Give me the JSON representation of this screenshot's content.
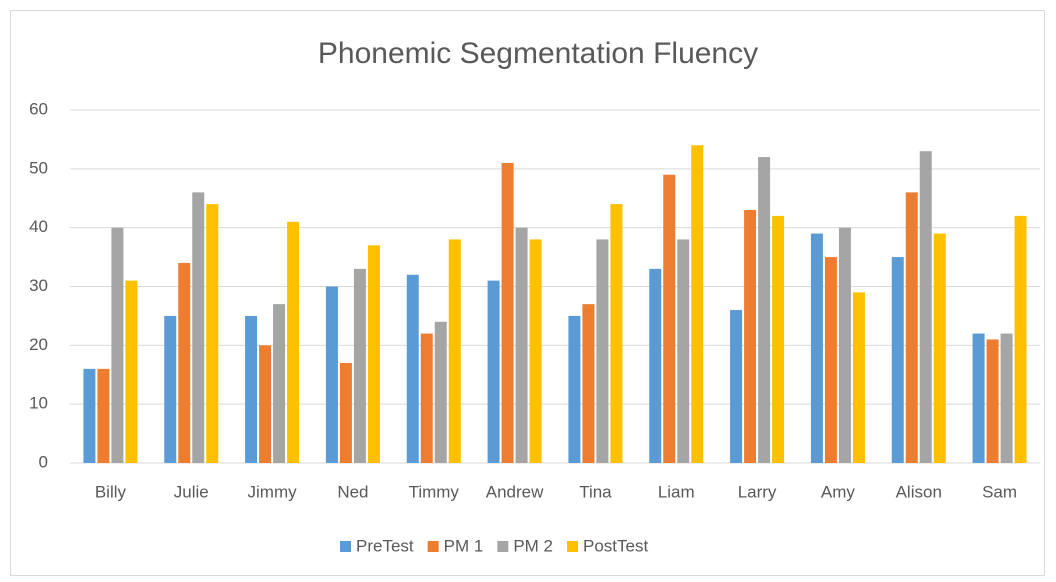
{
  "chart_data": {
    "type": "bar",
    "title": "Phonemic Segmentation Fluency",
    "categories": [
      "Billy",
      "Julie",
      "Jimmy",
      "Ned",
      "Timmy",
      "Andrew",
      "Tina",
      "Liam",
      "Larry",
      "Amy",
      "Alison",
      "Sam"
    ],
    "series": [
      {
        "name": "PreTest",
        "color": "#5b9bd5",
        "values": [
          16,
          25,
          25,
          30,
          32,
          31,
          25,
          33,
          26,
          39,
          35,
          22
        ]
      },
      {
        "name": "PM 1",
        "color": "#ed7d31",
        "values": [
          16,
          34,
          20,
          17,
          22,
          51,
          27,
          49,
          43,
          35,
          46,
          21
        ]
      },
      {
        "name": "PM 2",
        "color": "#a5a5a5",
        "values": [
          40,
          46,
          27,
          33,
          24,
          40,
          38,
          38,
          52,
          40,
          53,
          22
        ]
      },
      {
        "name": "PostTest",
        "color": "#ffc000",
        "values": [
          31,
          44,
          41,
          37,
          38,
          38,
          44,
          54,
          42,
          29,
          39,
          42
        ]
      }
    ],
    "ylim": [
      0,
      60
    ],
    "yticks": [
      0,
      10,
      20,
      30,
      40,
      50,
      60
    ],
    "grid": true,
    "legend": "bottom"
  }
}
